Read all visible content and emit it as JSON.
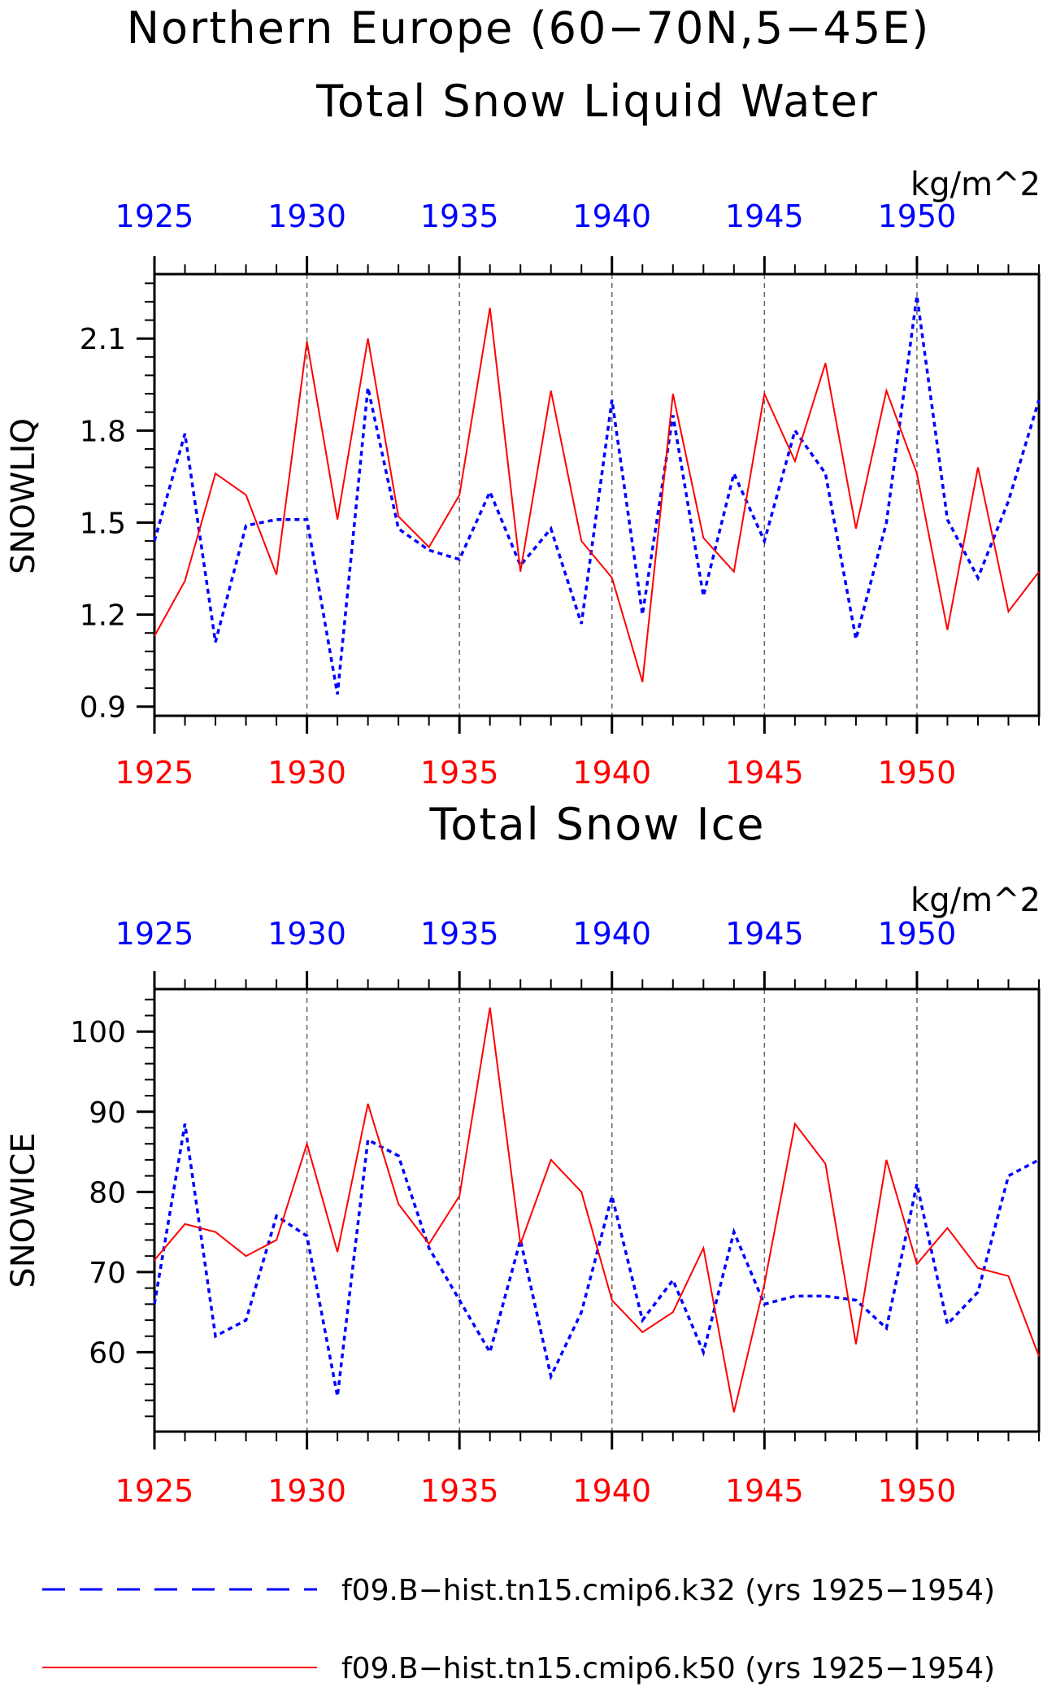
{
  "title_line1": "Northern Europe (60−70N,5−45E)",
  "legend": [
    {
      "label": "f09.B−hist.tn15.cmip6.k32 (yrs 1925−1954)",
      "color": "#0000ff",
      "style": "dashed"
    },
    {
      "label": "f09.B−hist.tn15.cmip6.k50 (yrs 1925−1954)",
      "color": "#ff0000",
      "style": "solid"
    }
  ],
  "chart_data": [
    {
      "type": "line",
      "title": "Total Snow Liquid Water",
      "units": "kg/m^2",
      "ylabel": "SNOWLIQ",
      "xlim": [
        1925,
        1954
      ],
      "ylim": [
        0.87,
        2.31
      ],
      "yticks": [
        0.9,
        1.2,
        1.5,
        1.8,
        2.1
      ],
      "ytick_labels": [
        "0.9",
        "1.2",
        "1.5",
        "1.8",
        "2.1"
      ],
      "xticks": [
        1925,
        1930,
        1935,
        1940,
        1945,
        1950
      ],
      "xtick_labels": [
        "1925",
        "1930",
        "1935",
        "1940",
        "1945",
        "1950"
      ],
      "x": [
        1925,
        1926,
        1927,
        1928,
        1929,
        1930,
        1931,
        1932,
        1933,
        1934,
        1935,
        1936,
        1937,
        1938,
        1939,
        1940,
        1941,
        1942,
        1943,
        1944,
        1945,
        1946,
        1947,
        1948,
        1949,
        1950,
        1951,
        1952,
        1953,
        1954
      ],
      "series": [
        {
          "name": "f09.B−hist.tn15.cmip6.k32",
          "color": "#0000ff",
          "style": "dashed",
          "values": [
            1.44,
            1.79,
            1.11,
            1.49,
            1.51,
            1.51,
            0.94,
            1.94,
            1.48,
            1.41,
            1.38,
            1.6,
            1.36,
            1.48,
            1.17,
            1.9,
            1.2,
            1.85,
            1.26,
            1.66,
            1.44,
            1.8,
            1.66,
            1.12,
            1.5,
            2.24,
            1.51,
            1.32,
            1.57,
            1.9
          ]
        },
        {
          "name": "f09.B−hist.tn15.cmip6.k50",
          "color": "#ff0000",
          "style": "solid",
          "values": [
            1.13,
            1.31,
            1.66,
            1.59,
            1.33,
            2.09,
            1.51,
            2.1,
            1.52,
            1.42,
            1.59,
            2.2,
            1.34,
            1.93,
            1.44,
            1.32,
            0.98,
            1.92,
            1.45,
            1.34,
            1.92,
            1.7,
            2.02,
            1.48,
            1.93,
            1.66,
            1.15,
            1.68,
            1.21,
            1.34
          ]
        }
      ]
    },
    {
      "type": "line",
      "title": "Total Snow Ice",
      "units": "kg/m^2",
      "ylabel": "SNOWICE",
      "xlim": [
        1925,
        1954
      ],
      "ylim": [
        50.1,
        105.3
      ],
      "yticks": [
        60,
        70,
        80,
        90,
        100
      ],
      "ytick_labels": [
        "60",
        "70",
        "80",
        "90",
        "100"
      ],
      "xticks": [
        1925,
        1930,
        1935,
        1940,
        1945,
        1950
      ],
      "xtick_labels": [
        "1925",
        "1930",
        "1935",
        "1940",
        "1945",
        "1950"
      ],
      "x": [
        1925,
        1926,
        1927,
        1928,
        1929,
        1930,
        1931,
        1932,
        1933,
        1934,
        1935,
        1936,
        1937,
        1938,
        1939,
        1940,
        1941,
        1942,
        1943,
        1944,
        1945,
        1946,
        1947,
        1948,
        1949,
        1950,
        1951,
        1952,
        1953,
        1954
      ],
      "series": [
        {
          "name": "f09.B−hist.tn15.cmip6.k32",
          "color": "#0000ff",
          "style": "dashed",
          "values": [
            66,
            88.5,
            62,
            64,
            77,
            74.5,
            54.5,
            86.5,
            84.5,
            73,
            66.5,
            60,
            74,
            57,
            65,
            79.5,
            64,
            69,
            60,
            75,
            66,
            67,
            67,
            66.5,
            63,
            81,
            63.5,
            67.5,
            82,
            84
          ]
        },
        {
          "name": "f09.B−hist.tn15.cmip6.k50",
          "color": "#ff0000",
          "style": "solid",
          "values": [
            71.5,
            76,
            75,
            72,
            74,
            86,
            72.5,
            91,
            78.5,
            73.5,
            79.5,
            103,
            73.5,
            84,
            80,
            66.5,
            62.5,
            65,
            73,
            52.5,
            68.5,
            88.5,
            83.5,
            61,
            84,
            71,
            75.5,
            70.5,
            69.5,
            59.5
          ]
        }
      ]
    }
  ]
}
